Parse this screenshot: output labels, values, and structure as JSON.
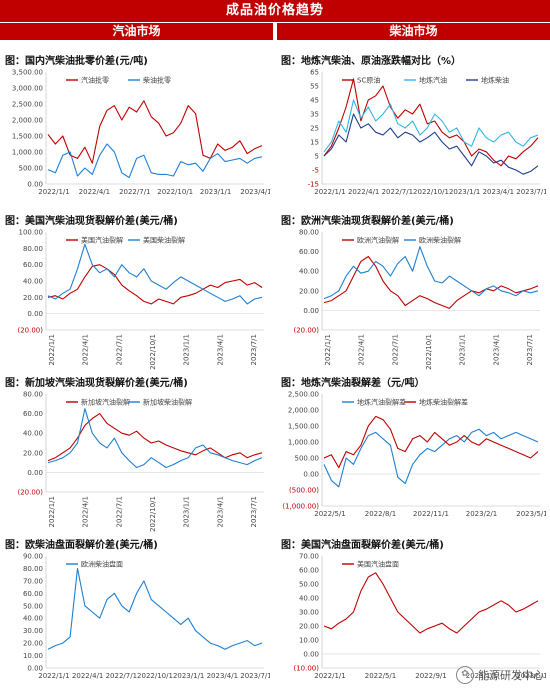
{
  "header": {
    "title": "成品油价格趋势",
    "left_section": "汽油市场",
    "right_section": "柴油市场"
  },
  "watermark": {
    "text": "能源研发中心",
    "icon": "wechat-icon"
  },
  "colors": {
    "banner": "#c00000",
    "red": "#c00000",
    "blue": "#1f7fd4",
    "cyan": "#2fb6e6",
    "navy": "#1f3e8c"
  },
  "chart_data": [
    {
      "id": "p1",
      "type": "line",
      "title": "图：国内汽柴油批零价差(元/吨)",
      "x_labels": [
        "2022/1/1",
        "2022/4/1",
        "2022/7/1",
        "2022/10/1",
        "2023/1/1",
        "2023/4/1"
      ],
      "x_label_rotate": false,
      "ylim": [
        0,
        3500
      ],
      "y_ticks": [
        "0.00",
        "500.00",
        "1,000.00",
        "1,500.00",
        "2,000.00",
        "2,500.00",
        "3,000.00",
        "3,500.00"
      ],
      "series": [
        {
          "name": "汽油批零",
          "color": "#c00000",
          "values": [
            1550,
            1250,
            1500,
            900,
            800,
            1150,
            650,
            1800,
            2300,
            2450,
            2000,
            2400,
            2250,
            2600,
            2100,
            1900,
            1500,
            1600,
            1900,
            2450,
            2200,
            900,
            800,
            1250,
            1050,
            1150,
            1350,
            950,
            1100,
            1200
          ]
        },
        {
          "name": "柴油批零",
          "color": "#1f7fd4",
          "values": [
            450,
            350,
            900,
            1000,
            250,
            500,
            300,
            900,
            1250,
            1000,
            350,
            200,
            800,
            900,
            350,
            300,
            300,
            250,
            700,
            600,
            650,
            400,
            800,
            950,
            700,
            750,
            800,
            650,
            800,
            850
          ]
        }
      ]
    },
    {
      "id": "p2",
      "type": "line",
      "title": "图：地炼汽柴油、原油涨跌幅对比（%）",
      "x_labels": [
        "2022/1/1",
        "2022/4/1",
        "2022/7/1",
        "2022/10/1",
        "2023/1/1",
        "2023/4/1",
        "2023/7/1"
      ],
      "x_label_rotate": false,
      "ylim": [
        -15,
        65
      ],
      "y_ticks": [
        "-15",
        "-5",
        "5",
        "15",
        "25",
        "35",
        "45",
        "55",
        "65"
      ],
      "series": [
        {
          "name": "SC原油",
          "color": "#c00000",
          "values": [
            5,
            12,
            25,
            40,
            60,
            30,
            45,
            48,
            55,
            40,
            32,
            38,
            35,
            42,
            28,
            30,
            22,
            18,
            20,
            15,
            5,
            10,
            8,
            2,
            -2,
            5,
            3,
            8,
            12,
            18
          ]
        },
        {
          "name": "地炼汽油",
          "color": "#2fb6e6",
          "values": [
            8,
            15,
            30,
            22,
            45,
            32,
            40,
            30,
            35,
            42,
            28,
            25,
            30,
            20,
            25,
            35,
            30,
            22,
            25,
            15,
            12,
            25,
            18,
            15,
            20,
            22,
            15,
            12,
            18,
            20
          ]
        },
        {
          "name": "地炼柴油",
          "color": "#1f3e8c",
          "values": [
            5,
            10,
            20,
            15,
            35,
            25,
            28,
            22,
            20,
            25,
            18,
            22,
            20,
            15,
            18,
            22,
            15,
            10,
            12,
            5,
            -2,
            8,
            5,
            0,
            2,
            -3,
            -5,
            -8,
            -6,
            -2
          ]
        }
      ]
    },
    {
      "id": "p3",
      "type": "line",
      "title": "图：美国汽柴油现货裂解价差(美元/桶)",
      "x_labels": [
        "2022/1/1",
        "2022/4/1",
        "2022/7/1",
        "2022/10/1",
        "2023/1/1",
        "2023/4/1",
        "2023/7/1"
      ],
      "x_label_rotate": true,
      "ylim": [
        -20,
        100
      ],
      "y_ticks": [
        "(20.00)",
        "0.00",
        "20.00",
        "40.00",
        "60.00",
        "80.00",
        "100.00"
      ],
      "series": [
        {
          "name": "美国汽油裂解",
          "color": "#c00000",
          "values": [
            20,
            22,
            18,
            25,
            30,
            45,
            58,
            60,
            55,
            48,
            35,
            28,
            22,
            15,
            12,
            18,
            15,
            12,
            20,
            22,
            25,
            30,
            35,
            32,
            38,
            40,
            42,
            35,
            38,
            32
          ]
        },
        {
          "name": "美国柴油裂解",
          "color": "#1f7fd4",
          "values": [
            22,
            18,
            25,
            30,
            55,
            85,
            60,
            50,
            55,
            45,
            60,
            50,
            45,
            55,
            40,
            35,
            30,
            38,
            45,
            40,
            35,
            30,
            25,
            20,
            15,
            18,
            22,
            12,
            18,
            20
          ]
        }
      ]
    },
    {
      "id": "p4",
      "type": "line",
      "title": "图：欧洲汽柴油现货裂解价差(美元/桶)",
      "x_labels": [
        "2022/1/1",
        "2022/4/1",
        "2022/7/1",
        "2022/10/1",
        "2023/1/1",
        "2023/4/1",
        "2023/7/1"
      ],
      "x_label_rotate": true,
      "ylim": [
        -20,
        80
      ],
      "y_ticks": [
        "(20.00)",
        "0.00",
        "20.00",
        "40.00",
        "60.00",
        "80.00"
      ],
      "series": [
        {
          "name": "欧洲汽油裂解",
          "color": "#c00000",
          "values": [
            8,
            10,
            15,
            20,
            35,
            50,
            55,
            45,
            30,
            20,
            15,
            5,
            10,
            15,
            12,
            8,
            5,
            2,
            10,
            15,
            20,
            18,
            22,
            20,
            25,
            22,
            18,
            20,
            22,
            25
          ]
        },
        {
          "name": "欧洲柴油裂解",
          "color": "#1f7fd4",
          "values": [
            12,
            15,
            20,
            35,
            45,
            38,
            40,
            50,
            45,
            35,
            48,
            55,
            40,
            65,
            45,
            30,
            28,
            35,
            30,
            25,
            20,
            15,
            22,
            25,
            20,
            18,
            15,
            20,
            18,
            20
          ]
        }
      ]
    },
    {
      "id": "p5",
      "type": "line",
      "title": "图：新加坡汽柴油现货裂解价差(美元/桶)",
      "x_labels": [
        "2022/1/1",
        "2022/4/1",
        "2022/7/1",
        "2022/10/1",
        "2023/1/1",
        "2023/4/1",
        "2023/7/1"
      ],
      "x_label_rotate": true,
      "ylim": [
        -20,
        80
      ],
      "y_ticks": [
        "(20.00)",
        "0.00",
        "20.00",
        "40.00",
        "60.00",
        "80.00"
      ],
      "series": [
        {
          "name": "新加坡汽油裂解",
          "color": "#c00000",
          "values": [
            12,
            15,
            20,
            25,
            35,
            48,
            55,
            60,
            50,
            45,
            40,
            38,
            42,
            35,
            30,
            32,
            28,
            25,
            22,
            20,
            18,
            22,
            25,
            20,
            15,
            18,
            20,
            15,
            18,
            20
          ]
        },
        {
          "name": "新加坡柴油裂解",
          "color": "#1f7fd4",
          "values": [
            10,
            12,
            15,
            20,
            30,
            65,
            40,
            30,
            25,
            35,
            20,
            12,
            5,
            8,
            15,
            10,
            5,
            8,
            12,
            15,
            25,
            28,
            20,
            18,
            15,
            12,
            10,
            8,
            12,
            15
          ]
        }
      ]
    },
    {
      "id": "p6",
      "type": "line",
      "title": "图：地炼汽柴油裂解差（元/吨）",
      "x_labels": [
        "2022/5/1",
        "2022/8/1",
        "2022/11/1",
        "2023/2/1",
        "2023/5/1"
      ],
      "x_label_rotate": false,
      "ylim": [
        -1000,
        2500
      ],
      "y_ticks": [
        "(1,000.00)",
        "(500.00)",
        "0.00",
        "500.00",
        "1,000.00",
        "1,500.00",
        "2,000.00",
        "2,500.00"
      ],
      "series": [
        {
          "name": "地炼汽油裂解差",
          "color": "#1f7fd4",
          "values": [
            300,
            -200,
            -400,
            500,
            300,
            800,
            1200,
            1300,
            1100,
            900,
            -100,
            -300,
            300,
            600,
            800,
            700,
            900,
            1100,
            1200,
            1000,
            1300,
            1400,
            1200,
            1300,
            1100,
            1200,
            1300,
            1200,
            1100,
            1000
          ]
        },
        {
          "name": "地炼柴油裂解差",
          "color": "#c00000",
          "values": [
            500,
            600,
            200,
            700,
            600,
            900,
            1500,
            1800,
            1700,
            1400,
            800,
            700,
            1100,
            1200,
            1000,
            1300,
            1100,
            900,
            1000,
            1200,
            1000,
            900,
            1100,
            1000,
            900,
            800,
            700,
            600,
            500,
            700
          ]
        }
      ]
    },
    {
      "id": "p7",
      "type": "line",
      "title": "图：欧柴油盘面裂解价差(美元/桶)",
      "x_labels": [
        "2022/1/1",
        "2022/4/1",
        "2022/7/1",
        "2022/10/1",
        "2023/1/1",
        "2023/4/1",
        "2023/7/1"
      ],
      "x_label_rotate": false,
      "ylim": [
        0,
        90
      ],
      "y_ticks": [
        "0.00",
        "10.00",
        "20.00",
        "30.00",
        "40.00",
        "50.00",
        "60.00",
        "70.00",
        "80.00",
        "90.00"
      ],
      "series": [
        {
          "name": "欧洲柴油盘面",
          "color": "#1f7fd4",
          "values": [
            15,
            18,
            20,
            25,
            80,
            50,
            45,
            40,
            55,
            60,
            50,
            45,
            60,
            70,
            55,
            50,
            45,
            40,
            35,
            40,
            30,
            25,
            20,
            18,
            15,
            18,
            20,
            22,
            18,
            20
          ]
        }
      ]
    },
    {
      "id": "p8",
      "type": "line",
      "title": "图：美国汽油盘面裂解价差(美元/桶)",
      "x_labels": [
        "2022/1/1",
        "2022/5/1",
        "2022/9/1",
        "2023/1/1",
        "2023/5/1"
      ],
      "x_label_rotate": false,
      "ylim": [
        -10,
        70
      ],
      "y_ticks": [
        "(10.00)",
        "0.00",
        "10.00",
        "20.00",
        "30.00",
        "40.00",
        "50.00",
        "60.00",
        "70.00"
      ],
      "series": [
        {
          "name": "美国汽油盘面",
          "color": "#c00000",
          "values": [
            20,
            18,
            22,
            25,
            30,
            45,
            55,
            58,
            50,
            40,
            30,
            25,
            20,
            15,
            18,
            20,
            22,
            18,
            15,
            20,
            25,
            30,
            32,
            35,
            38,
            35,
            30,
            32,
            35,
            38
          ]
        }
      ]
    }
  ]
}
